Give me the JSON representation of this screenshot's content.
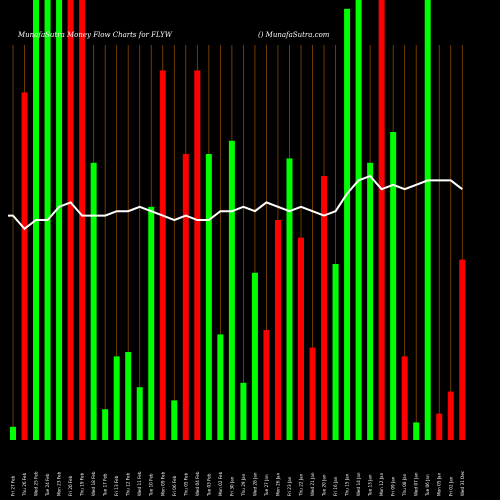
{
  "header": {
    "title": "MunafaSutra Money Flow  Charts for FLYW",
    "watermark": "() MunafaSutra.com"
  },
  "chart_data": {
    "type": "bar",
    "title": "MunafaSutra Money Flow  Charts for FLYW",
    "colors": {
      "up": "#00ff00",
      "down": "#ff0000",
      "line": "#ffffff",
      "grid": "#8b4a00",
      "background": "#000000"
    },
    "ylim": [
      0,
      100
    ],
    "categories": [
      "Fri 27 Feb",
      "Thu 26 Feb",
      "Wed 25 Feb",
      "Tue 24 Feb",
      "Mon 23 Feb",
      "Fri 20 Feb",
      "Thu 19 Feb",
      "Wed 18 Feb",
      "Tue 17 Feb",
      "Fri 13 Feb",
      "Thu 12 Feb",
      "Wed 11 Feb",
      "Tue 10 Feb",
      "Mon 09 Feb",
      "Fri 06 Feb",
      "Thu 05 Feb",
      "Wed 04 Feb",
      "Tue 03 Feb",
      "Mon 02 Feb",
      "Fri 30 Jan",
      "Thu 29 Jan",
      "Wed 28 Jan",
      "Tue 27 Jan",
      "Mon 26 Jan",
      "Fri 23 Jan",
      "Thu 22 Jan",
      "Wed 21 Jan",
      "Tue 20 Jan",
      "Fri 16 Jan",
      "Thu 15 Jan",
      "Wed 14 Jan",
      "Tue 13 Jan",
      "Mon 12 Jan",
      "Fri 09 Jan",
      "Thu 08 Jan",
      "Wed 07 Jan",
      "Tue 06 Jan",
      "Mon 05 Jan",
      "Fri 02 Jan",
      "Wed 31 Dec"
    ],
    "bars": [
      {
        "dir": "up",
        "value": 3
      },
      {
        "dir": "down",
        "value": 79
      },
      {
        "dir": "up",
        "value": 100
      },
      {
        "dir": "up",
        "value": 100
      },
      {
        "dir": "up",
        "value": 100
      },
      {
        "dir": "down",
        "value": 100
      },
      {
        "dir": "down",
        "value": 100
      },
      {
        "dir": "up",
        "value": 63
      },
      {
        "dir": "up",
        "value": 7
      },
      {
        "dir": "up",
        "value": 19
      },
      {
        "dir": "up",
        "value": 20
      },
      {
        "dir": "up",
        "value": 12
      },
      {
        "dir": "up",
        "value": 53
      },
      {
        "dir": "down",
        "value": 84
      },
      {
        "dir": "up",
        "value": 9
      },
      {
        "dir": "down",
        "value": 65
      },
      {
        "dir": "down",
        "value": 84
      },
      {
        "dir": "up",
        "value": 65
      },
      {
        "dir": "up",
        "value": 24
      },
      {
        "dir": "up",
        "value": 68
      },
      {
        "dir": "up",
        "value": 13
      },
      {
        "dir": "up",
        "value": 38
      },
      {
        "dir": "down",
        "value": 25
      },
      {
        "dir": "down",
        "value": 50
      },
      {
        "dir": "up",
        "value": 64
      },
      {
        "dir": "down",
        "value": 46
      },
      {
        "dir": "down",
        "value": 21
      },
      {
        "dir": "down",
        "value": 60
      },
      {
        "dir": "up",
        "value": 40
      },
      {
        "dir": "up",
        "value": 98
      },
      {
        "dir": "up",
        "value": 100
      },
      {
        "dir": "up",
        "value": 63
      },
      {
        "dir": "down",
        "value": 100
      },
      {
        "dir": "up",
        "value": 70
      },
      {
        "dir": "down",
        "value": 19
      },
      {
        "dir": "up",
        "value": 4
      },
      {
        "dir": "up",
        "value": 100
      },
      {
        "dir": "down",
        "value": 6
      },
      {
        "dir": "down",
        "value": 11
      },
      {
        "dir": "down",
        "value": 41
      }
    ],
    "line": [
      51,
      48,
      50,
      50,
      53,
      54,
      51,
      51,
      51,
      52,
      52,
      53,
      52,
      51,
      50,
      51,
      50,
      50,
      52,
      52,
      53,
      52,
      54,
      53,
      52,
      53,
      52,
      51,
      52,
      56,
      59,
      60,
      57,
      58,
      57,
      58,
      59,
      59,
      59,
      57
    ]
  }
}
